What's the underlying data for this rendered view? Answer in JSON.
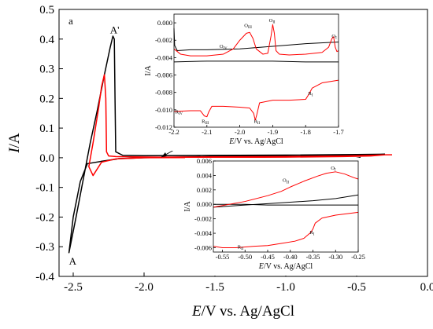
{
  "chart_data": {
    "type": "line",
    "panel_label": "a",
    "xlabel_italic": "E",
    "xlabel_rest": "/V vs. Ag/AgCl",
    "ylabel_italic": "I",
    "ylabel_rest": "/A",
    "xlim": [
      -2.6,
      0.0
    ],
    "ylim": [
      -0.4,
      0.5
    ],
    "xticks": [
      "-2.5",
      "-2.0",
      "-1.5",
      "-1.0",
      "-0.5",
      "0.0"
    ],
    "xtick_values": [
      -2.5,
      -2.0,
      -1.5,
      -1.0,
      -0.5,
      0.0
    ],
    "yticks": [
      "-0.4",
      "-0.3",
      "-0.2",
      "-0.1",
      "0.0",
      "0.1",
      "0.2",
      "0.3",
      "0.4",
      "0.5"
    ],
    "ytick_values": [
      -0.4,
      -0.3,
      -0.2,
      -0.1,
      0.0,
      0.1,
      0.2,
      0.3,
      0.4,
      0.5
    ],
    "annotations": [
      {
        "text": "A'",
        "x": -2.24,
        "y": 0.43
      },
      {
        "text": "A",
        "x": -2.53,
        "y": -0.35
      }
    ],
    "series": [
      {
        "color": "#000000",
        "points": [
          [
            -0.3,
            0.012
          ],
          [
            -0.5,
            0.01
          ],
          [
            -1.0,
            0.007
          ],
          [
            -1.5,
            0.004
          ],
          [
            -2.0,
            0.0
          ],
          [
            -2.18,
            -0.003
          ],
          [
            -2.2,
            -0.005
          ],
          [
            -2.3,
            -0.012
          ],
          [
            -2.4,
            -0.02
          ],
          [
            -2.45,
            -0.08
          ],
          [
            -2.5,
            -0.2
          ],
          [
            -2.53,
            -0.32
          ],
          [
            -2.48,
            -0.2
          ],
          [
            -2.42,
            -0.05
          ],
          [
            -2.38,
            0.05
          ],
          [
            -2.33,
            0.16
          ],
          [
            -2.28,
            0.28
          ],
          [
            -2.24,
            0.37
          ],
          [
            -2.22,
            0.41
          ],
          [
            -2.21,
            0.4
          ],
          [
            -2.205,
            0.2
          ],
          [
            -2.2,
            0.02
          ],
          [
            -2.15,
            0.008
          ],
          [
            -2.0,
            0.007
          ],
          [
            -1.5,
            0.008
          ],
          [
            -1.0,
            0.009
          ],
          [
            -0.5,
            0.011
          ],
          [
            -0.3,
            0.012
          ]
        ]
      },
      {
        "color": "#ff0000",
        "points": [
          [
            -0.25,
            0.01
          ],
          [
            -0.3,
            0.01
          ],
          [
            -0.4,
            0.006
          ],
          [
            -0.6,
            0.004
          ],
          [
            -1.0,
            0.002
          ],
          [
            -1.5,
            0.001
          ],
          [
            -2.0,
            0.0
          ],
          [
            -2.2,
            -0.004
          ],
          [
            -2.3,
            -0.015
          ],
          [
            -2.36,
            -0.06
          ],
          [
            -2.39,
            -0.03
          ],
          [
            -2.36,
            0.05
          ],
          [
            -2.32,
            0.17
          ],
          [
            -2.3,
            0.24
          ],
          [
            -2.28,
            0.28
          ],
          [
            -2.27,
            0.2
          ],
          [
            -2.265,
            0.02
          ],
          [
            -2.25,
            0.006
          ],
          [
            -2.2,
            0.004
          ],
          [
            -2.1,
            0.003
          ],
          [
            -1.9,
            0.002
          ],
          [
            -1.5,
            0.003
          ],
          [
            -1.0,
            0.004
          ],
          [
            -0.6,
            0.006
          ],
          [
            -0.4,
            0.008
          ],
          [
            -0.3,
            0.01
          ],
          [
            -0.25,
            0.01
          ]
        ]
      }
    ],
    "insets": [
      {
        "xlim": [
          -2.2,
          -1.7
        ],
        "ylim": [
          -0.012,
          0.001
        ],
        "xticks": [
          "-2.2",
          "-2.1",
          "-2.0",
          "-1.9",
          "-1.8",
          "-1.7"
        ],
        "xtick_values": [
          -2.2,
          -2.1,
          -2.0,
          -1.9,
          -1.8,
          -1.7
        ],
        "yticks": [
          "0.000",
          "-0.002",
          "-0.004",
          "-0.006",
          "-0.008",
          "-0.010",
          "-0.012"
        ],
        "ytick_values": [
          0.0,
          -0.002,
          -0.004,
          -0.006,
          -0.008,
          -0.01,
          -0.012
        ],
        "xlabel_italic": "E",
        "xlabel_rest": "/V vs. Ag/AgCl",
        "ylabel": "I/A",
        "peak_labels": [
          {
            "text": "O",
            "sub": "IV",
            "x": -2.05,
            "y": -0.0029
          },
          {
            "text": "O",
            "sub": "III",
            "x": -1.975,
            "y": -0.0005
          },
          {
            "text": "O",
            "sub": "II",
            "x": -1.902,
            "y": 0.0001
          },
          {
            "text": "O",
            "sub": "I",
            "x": -1.713,
            "y": -0.0017
          },
          {
            "text": "R",
            "sub": "I",
            "x": -1.785,
            "y": -0.0083
          },
          {
            "text": "R",
            "sub": "II",
            "x": -1.948,
            "y": -0.0115
          },
          {
            "text": "R",
            "sub": "III",
            "x": -2.105,
            "y": -0.0115
          },
          {
            "text": "R",
            "sub": "IV",
            "x": -2.185,
            "y": -0.0104
          }
        ],
        "series": [
          {
            "color": "#000000",
            "points": [
              [
                -2.2,
                -0.0006
              ],
              [
                -2.198,
                -0.0026
              ],
              [
                -2.19,
                -0.0032
              ],
              [
                -2.15,
                -0.0031
              ],
              [
                -2.1,
                -0.0031
              ],
              [
                -2.0,
                -0.003
              ],
              [
                -1.9,
                -0.0027
              ],
              [
                -1.8,
                -0.0024
              ],
              [
                -1.7,
                -0.0022
              ]
            ]
          },
          {
            "color": "#000000",
            "points": [
              [
                -2.2,
                -0.0045
              ],
              [
                -2.1,
                -0.0044
              ],
              [
                -2.0,
                -0.0044
              ],
              [
                -1.9,
                -0.0044
              ],
              [
                -1.8,
                -0.0045
              ],
              [
                -1.7,
                -0.0045
              ]
            ]
          },
          {
            "color": "#ff0000",
            "points": [
              [
                -2.2,
                -0.003
              ],
              [
                -2.18,
                -0.0036
              ],
              [
                -2.15,
                -0.0038
              ],
              [
                -2.1,
                -0.0038
              ],
              [
                -2.05,
                -0.0036
              ],
              [
                -2.02,
                -0.003
              ],
              [
                -2.0,
                -0.002
              ],
              [
                -1.98,
                -0.0012
              ],
              [
                -1.97,
                -0.0011
              ],
              [
                -1.96,
                -0.0018
              ],
              [
                -1.95,
                -0.003
              ],
              [
                -1.93,
                -0.0036
              ],
              [
                -1.915,
                -0.0035
              ],
              [
                -1.905,
                -0.0015
              ],
              [
                -1.9,
                -0.0002
              ],
              [
                -1.895,
                -0.0012
              ],
              [
                -1.89,
                -0.0032
              ],
              [
                -1.88,
                -0.0036
              ],
              [
                -1.85,
                -0.0037
              ],
              [
                -1.8,
                -0.0036
              ],
              [
                -1.75,
                -0.0034
              ],
              [
                -1.73,
                -0.0028
              ],
              [
                -1.72,
                -0.0018
              ],
              [
                -1.715,
                -0.0016
              ],
              [
                -1.71,
                -0.0028
              ],
              [
                -1.705,
                -0.0033
              ],
              [
                -1.7,
                -0.0032
              ]
            ]
          },
          {
            "color": "#ff0000",
            "points": [
              [
                -2.2,
                -0.0102
              ],
              [
                -2.15,
                -0.0101
              ],
              [
                -2.12,
                -0.0101
              ],
              [
                -2.108,
                -0.0107
              ],
              [
                -2.1,
                -0.0108
              ],
              [
                -2.095,
                -0.0103
              ],
              [
                -2.085,
                -0.0096
              ],
              [
                -2.05,
                -0.0096
              ],
              [
                -2.0,
                -0.0097
              ],
              [
                -1.97,
                -0.0098
              ],
              [
                -1.958,
                -0.0104
              ],
              [
                -1.953,
                -0.0112
              ],
              [
                -1.948,
                -0.0105
              ],
              [
                -1.94,
                -0.0092
              ],
              [
                -1.9,
                -0.0089
              ],
              [
                -1.85,
                -0.0089
              ],
              [
                -1.8,
                -0.0088
              ],
              [
                -1.79,
                -0.0082
              ],
              [
                -1.78,
                -0.0075
              ],
              [
                -1.75,
                -0.0069
              ],
              [
                -1.7,
                -0.0066
              ]
            ]
          }
        ]
      },
      {
        "xlim": [
          -0.57,
          -0.25
        ],
        "ylim": [
          -0.0066,
          0.006
        ],
        "xticks": [
          "-0.55",
          "-0.50",
          "-0.45",
          "-0.40",
          "-0.35",
          "-0.30",
          "-0.25"
        ],
        "xtick_values": [
          -0.55,
          -0.5,
          -0.45,
          -0.4,
          -0.35,
          -0.3,
          -0.25
        ],
        "yticks": [
          "0.006",
          "0.004",
          "0.002",
          "0.000",
          "-0.002",
          "-0.004",
          "-0.006"
        ],
        "ytick_values": [
          0.006,
          0.004,
          0.002,
          0.0,
          -0.002,
          -0.004,
          -0.006
        ],
        "xlabel_italic": "E",
        "xlabel_rest": "/V vs. Ag/AgCl",
        "ylabel": "I/A",
        "peak_labels": [
          {
            "text": "O",
            "sub": "I",
            "x": -0.305,
            "y": 0.0048
          },
          {
            "text": "O",
            "sub": "II",
            "x": -0.41,
            "y": 0.0031
          },
          {
            "text": "R",
            "sub": "I",
            "x": -0.352,
            "y": -0.0041
          },
          {
            "text": "R",
            "sub": "II",
            "x": -0.51,
            "y": -0.0061
          }
        ],
        "series": [
          {
            "color": "#000000",
            "points": [
              [
                -0.57,
                -0.0004
              ],
              [
                -0.5,
                -0.0001
              ],
              [
                -0.45,
                0.0001
              ],
              [
                -0.4,
                0.0003
              ],
              [
                -0.35,
                0.0005
              ],
              [
                -0.3,
                0.0008
              ],
              [
                -0.25,
                0.0013
              ]
            ]
          },
          {
            "color": "#000000",
            "points": [
              [
                -0.57,
                0.0
              ],
              [
                -0.5,
                0.0
              ],
              [
                -0.45,
                -0.0001
              ],
              [
                -0.4,
                -0.0001
              ],
              [
                -0.35,
                -0.0001
              ],
              [
                -0.3,
                -0.0001
              ],
              [
                -0.25,
                -0.0001
              ]
            ]
          },
          {
            "color": "#ff0000",
            "points": [
              [
                -0.57,
                -0.0004
              ],
              [
                -0.5,
                0.0004
              ],
              [
                -0.45,
                0.0012
              ],
              [
                -0.42,
                0.0018
              ],
              [
                -0.4,
                0.0024
              ],
              [
                -0.37,
                0.0032
              ],
              [
                -0.34,
                0.0039
              ],
              [
                -0.32,
                0.0043
              ],
              [
                -0.3,
                0.0045
              ],
              [
                -0.28,
                0.0042
              ],
              [
                -0.26,
                0.0037
              ],
              [
                -0.25,
                0.0035
              ]
            ]
          },
          {
            "color": "#ff0000",
            "points": [
              [
                -0.57,
                -0.0058
              ],
              [
                -0.55,
                -0.006
              ],
              [
                -0.52,
                -0.006
              ],
              [
                -0.48,
                -0.0058
              ],
              [
                -0.45,
                -0.0057
              ],
              [
                -0.42,
                -0.0054
              ],
              [
                -0.39,
                -0.0051
              ],
              [
                -0.37,
                -0.0047
              ],
              [
                -0.355,
                -0.0039
              ],
              [
                -0.35,
                -0.0034
              ],
              [
                -0.345,
                -0.0026
              ],
              [
                -0.33,
                -0.0019
              ],
              [
                -0.3,
                -0.0015
              ],
              [
                -0.25,
                -0.0011
              ]
            ]
          }
        ]
      }
    ]
  }
}
